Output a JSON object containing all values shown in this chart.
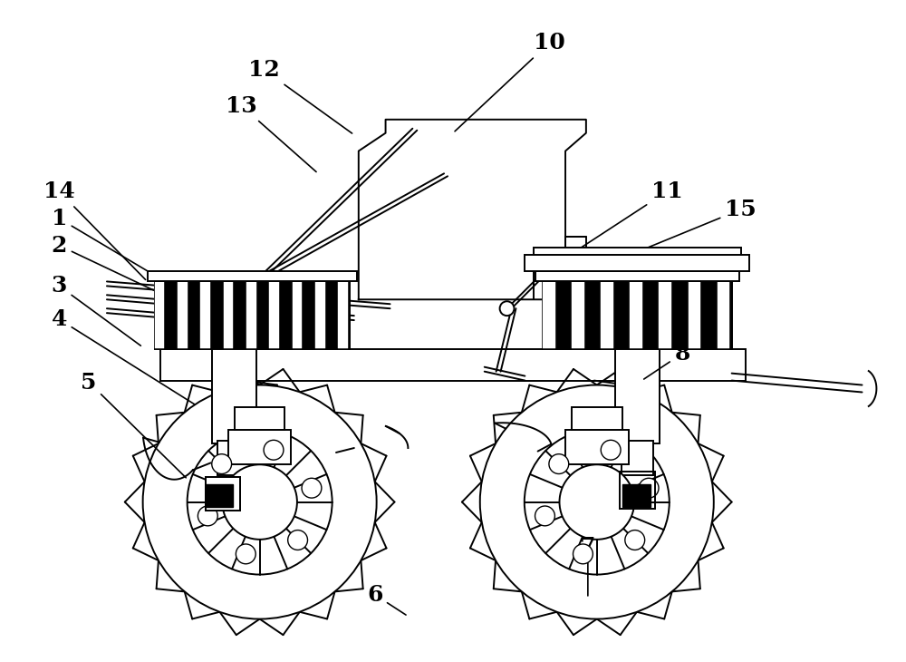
{
  "bg_color": "#ffffff",
  "line_color": "#000000",
  "fig_width": 10.0,
  "fig_height": 7.3,
  "lw": 1.4,
  "label_fontsize": 18
}
